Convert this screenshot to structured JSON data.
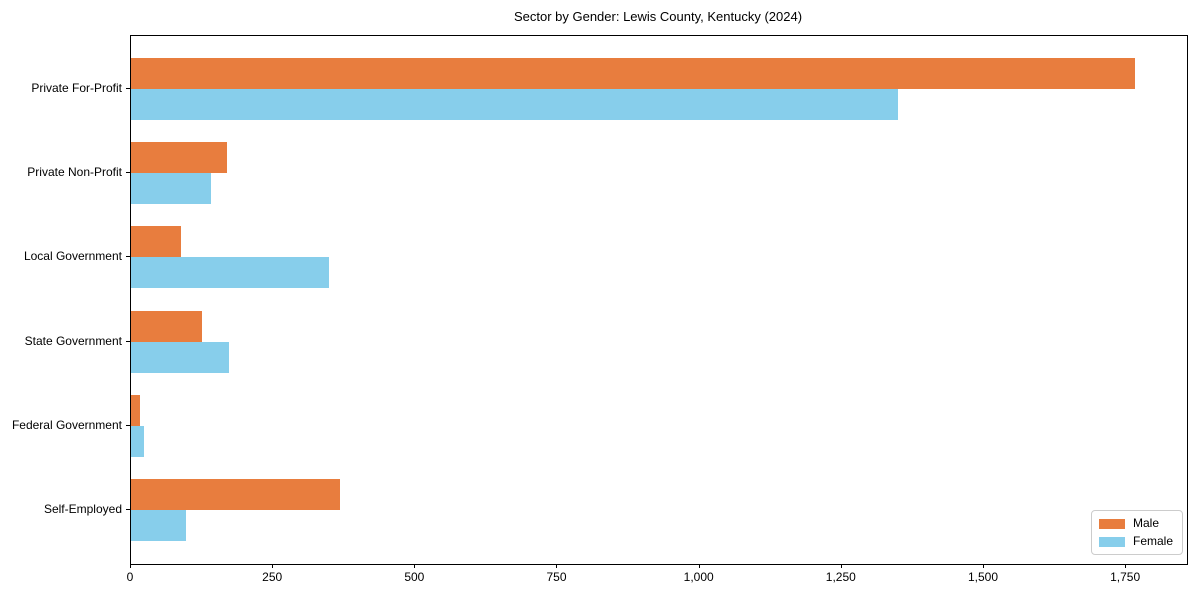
{
  "figure": {
    "background": "#ffffff",
    "axis_color": "#000000"
  },
  "chart_data": {
    "type": "bar",
    "orientation": "horizontal",
    "title": "Sector by Gender: Lewis County, Kentucky (2024)",
    "categories": [
      "Private For-Profit",
      "Private Non-Profit",
      "Local Government",
      "State Government",
      "Federal Government",
      "Self-Employed"
    ],
    "series": [
      {
        "name": "Male",
        "color": "#e87d3e",
        "values": [
          1766,
          169,
          88,
          125,
          15,
          367
        ]
      },
      {
        "name": "Female",
        "color": "#87ceeb",
        "values": [
          1349,
          140,
          348,
          173,
          22,
          97
        ]
      }
    ],
    "xlabel": "",
    "ylabel": "",
    "xlim": [
      0,
      1857
    ],
    "x_ticks": [
      0,
      250,
      500,
      750,
      1000,
      1250,
      1500,
      1750
    ],
    "x_tick_labels": [
      "0",
      "250",
      "500",
      "750",
      "1,000",
      "1,250",
      "1,500",
      "1,750"
    ],
    "grid": false,
    "legend": {
      "position": "lower-right"
    }
  }
}
